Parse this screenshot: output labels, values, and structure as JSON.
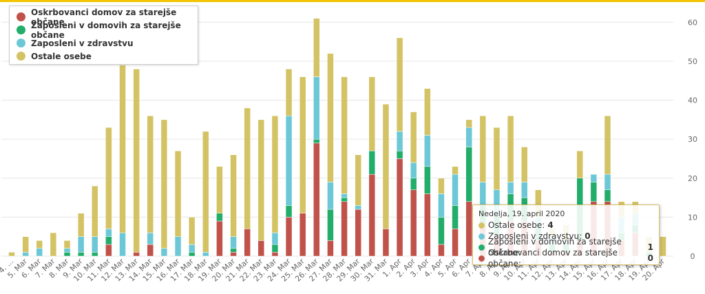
{
  "chart_data": {
    "type": "bar",
    "stacked": true,
    "categories": [
      "4. Mar",
      "5. Mar",
      "6. Mar",
      "7. Mar",
      "8. Mar",
      "9. Mar",
      "10. Mar",
      "11. Mar",
      "12. Mar",
      "13. Mar",
      "14. Mar",
      "15. Mar",
      "16. Mar",
      "17. Mar",
      "18. Mar",
      "19. Mar",
      "20. Mar",
      "21. Mar",
      "22. Mar",
      "23. Mar",
      "24. Mar",
      "25. Mar",
      "26. Mar",
      "27. Mar",
      "28. Mar",
      "29. Mar",
      "30. Mar",
      "31. Mar",
      "1. Apr",
      "2. Apr",
      "3. Apr",
      "4. Apr",
      "5. Apr",
      "6. Apr",
      "7. Apr",
      "8. Apr",
      "9. Apr",
      "10. Apr",
      "11. Apr",
      "12. Apr",
      "13. Apr",
      "14. Apr",
      "15. Apr",
      "16. Apr",
      "17. Apr",
      "18. Apr",
      "19. Apr",
      "20. Apr"
    ],
    "tick_labels": [
      "4. ...",
      "5. Mar",
      "6. Mar",
      "7. Mar",
      "8. Mar",
      "9. Mar",
      "10. Mar",
      "11. Mar",
      "12. Mar",
      "13. Mar",
      "14. Mar",
      "15. Mar",
      "16. Mar",
      "17. Mar",
      "18. Mar",
      "19. Mar",
      "20. Mar",
      "21. Mar",
      "22. Mar",
      "23. Mar",
      "24. Mar",
      "25. Mar",
      "26. Mar",
      "27. Mar",
      "28. Mar",
      "29. Mar",
      "30. Mar",
      "31. Mar",
      "1. Apr",
      "2. Apr",
      "3. Apr",
      "4. Apr",
      "5. Apr",
      "6. Apr",
      "7. Apr",
      "8. Apr",
      "9. Apr",
      "10. Apr",
      "11. Apr",
      "12. Apr",
      "13. Apr",
      "14. Apr",
      "15. Apr",
      "16. Apr",
      "17. Apr",
      "18. Apr",
      "19. Apr",
      "20. Apr"
    ],
    "series": [
      {
        "name": "Oskrbovanci domov za starejše občane",
        "color": "#c0524a",
        "values": [
          0,
          0,
          0,
          0,
          0,
          0,
          0,
          3,
          0,
          1,
          3,
          0,
          0,
          0,
          0,
          9,
          1,
          7,
          4,
          1,
          10,
          11,
          29,
          4,
          14,
          12,
          21,
          7,
          25,
          17,
          16,
          3,
          7,
          14,
          8,
          5,
          9,
          9,
          4,
          1,
          1,
          4,
          14,
          14,
          4,
          6,
          0,
          0
        ]
      },
      {
        "name": "Zaposleni v domovih za starejše občane",
        "color": "#22ad6b",
        "values": [
          0,
          0,
          0,
          0,
          1,
          1,
          1,
          2,
          0,
          0,
          0,
          0,
          0,
          1,
          0,
          2,
          1,
          0,
          0,
          2,
          3,
          0,
          1,
          8,
          1,
          0,
          6,
          0,
          2,
          3,
          7,
          7,
          6,
          14,
          5,
          6,
          7,
          6,
          4,
          2,
          2,
          16,
          5,
          3,
          2,
          2,
          1,
          0
        ]
      },
      {
        "name": "Zaposleni v zdravstvu",
        "color": "#6cc8d6",
        "values": [
          0,
          1,
          2,
          0,
          1,
          4,
          4,
          2,
          6,
          0,
          3,
          2,
          5,
          2,
          1,
          0,
          3,
          0,
          0,
          3,
          23,
          0,
          16,
          7,
          1,
          1,
          0,
          0,
          5,
          4,
          8,
          6,
          8,
          5,
          6,
          6,
          3,
          4,
          2,
          2,
          1,
          0,
          2,
          4,
          4,
          3,
          0,
          0
        ]
      },
      {
        "name": "Ostale osebe",
        "color": "#d4c365",
        "values": [
          1,
          4,
          2,
          6,
          2,
          6,
          13,
          26,
          43,
          47,
          30,
          33,
          22,
          7,
          31,
          12,
          21,
          31,
          31,
          30,
          12,
          35,
          15,
          33,
          30,
          13,
          19,
          32,
          24,
          13,
          12,
          4,
          2,
          2,
          17,
          16,
          17,
          9,
          7,
          2,
          4,
          7,
          0,
          15,
          4,
          3,
          4,
          5
        ]
      }
    ],
    "y_ticks": [
      0,
      10,
      20,
      30,
      40,
      50,
      60
    ],
    "ylim": [
      0,
      65
    ],
    "grid": true,
    "legend_position": "top-left",
    "title": "",
    "xlabel": "",
    "ylabel": ""
  },
  "tooltip": {
    "title": "Nedelja, 19. april 2020",
    "rows": [
      {
        "label": "Ostale osebe:",
        "value": "4",
        "color": "#d4c365"
      },
      {
        "label": "Zaposleni v zdravstvu:",
        "value": "0",
        "color": "#6cc8d6"
      },
      {
        "label": "Zaposleni v domovih za starejše občane:",
        "value": "1",
        "color": "#22ad6b"
      },
      {
        "label": "Oskrbovanci domov za starejše občane:",
        "value": "0",
        "color": "#c0524a"
      }
    ]
  },
  "colors": {
    "accent_top_border": "#f2c500",
    "grid": "#e6e6e6"
  }
}
